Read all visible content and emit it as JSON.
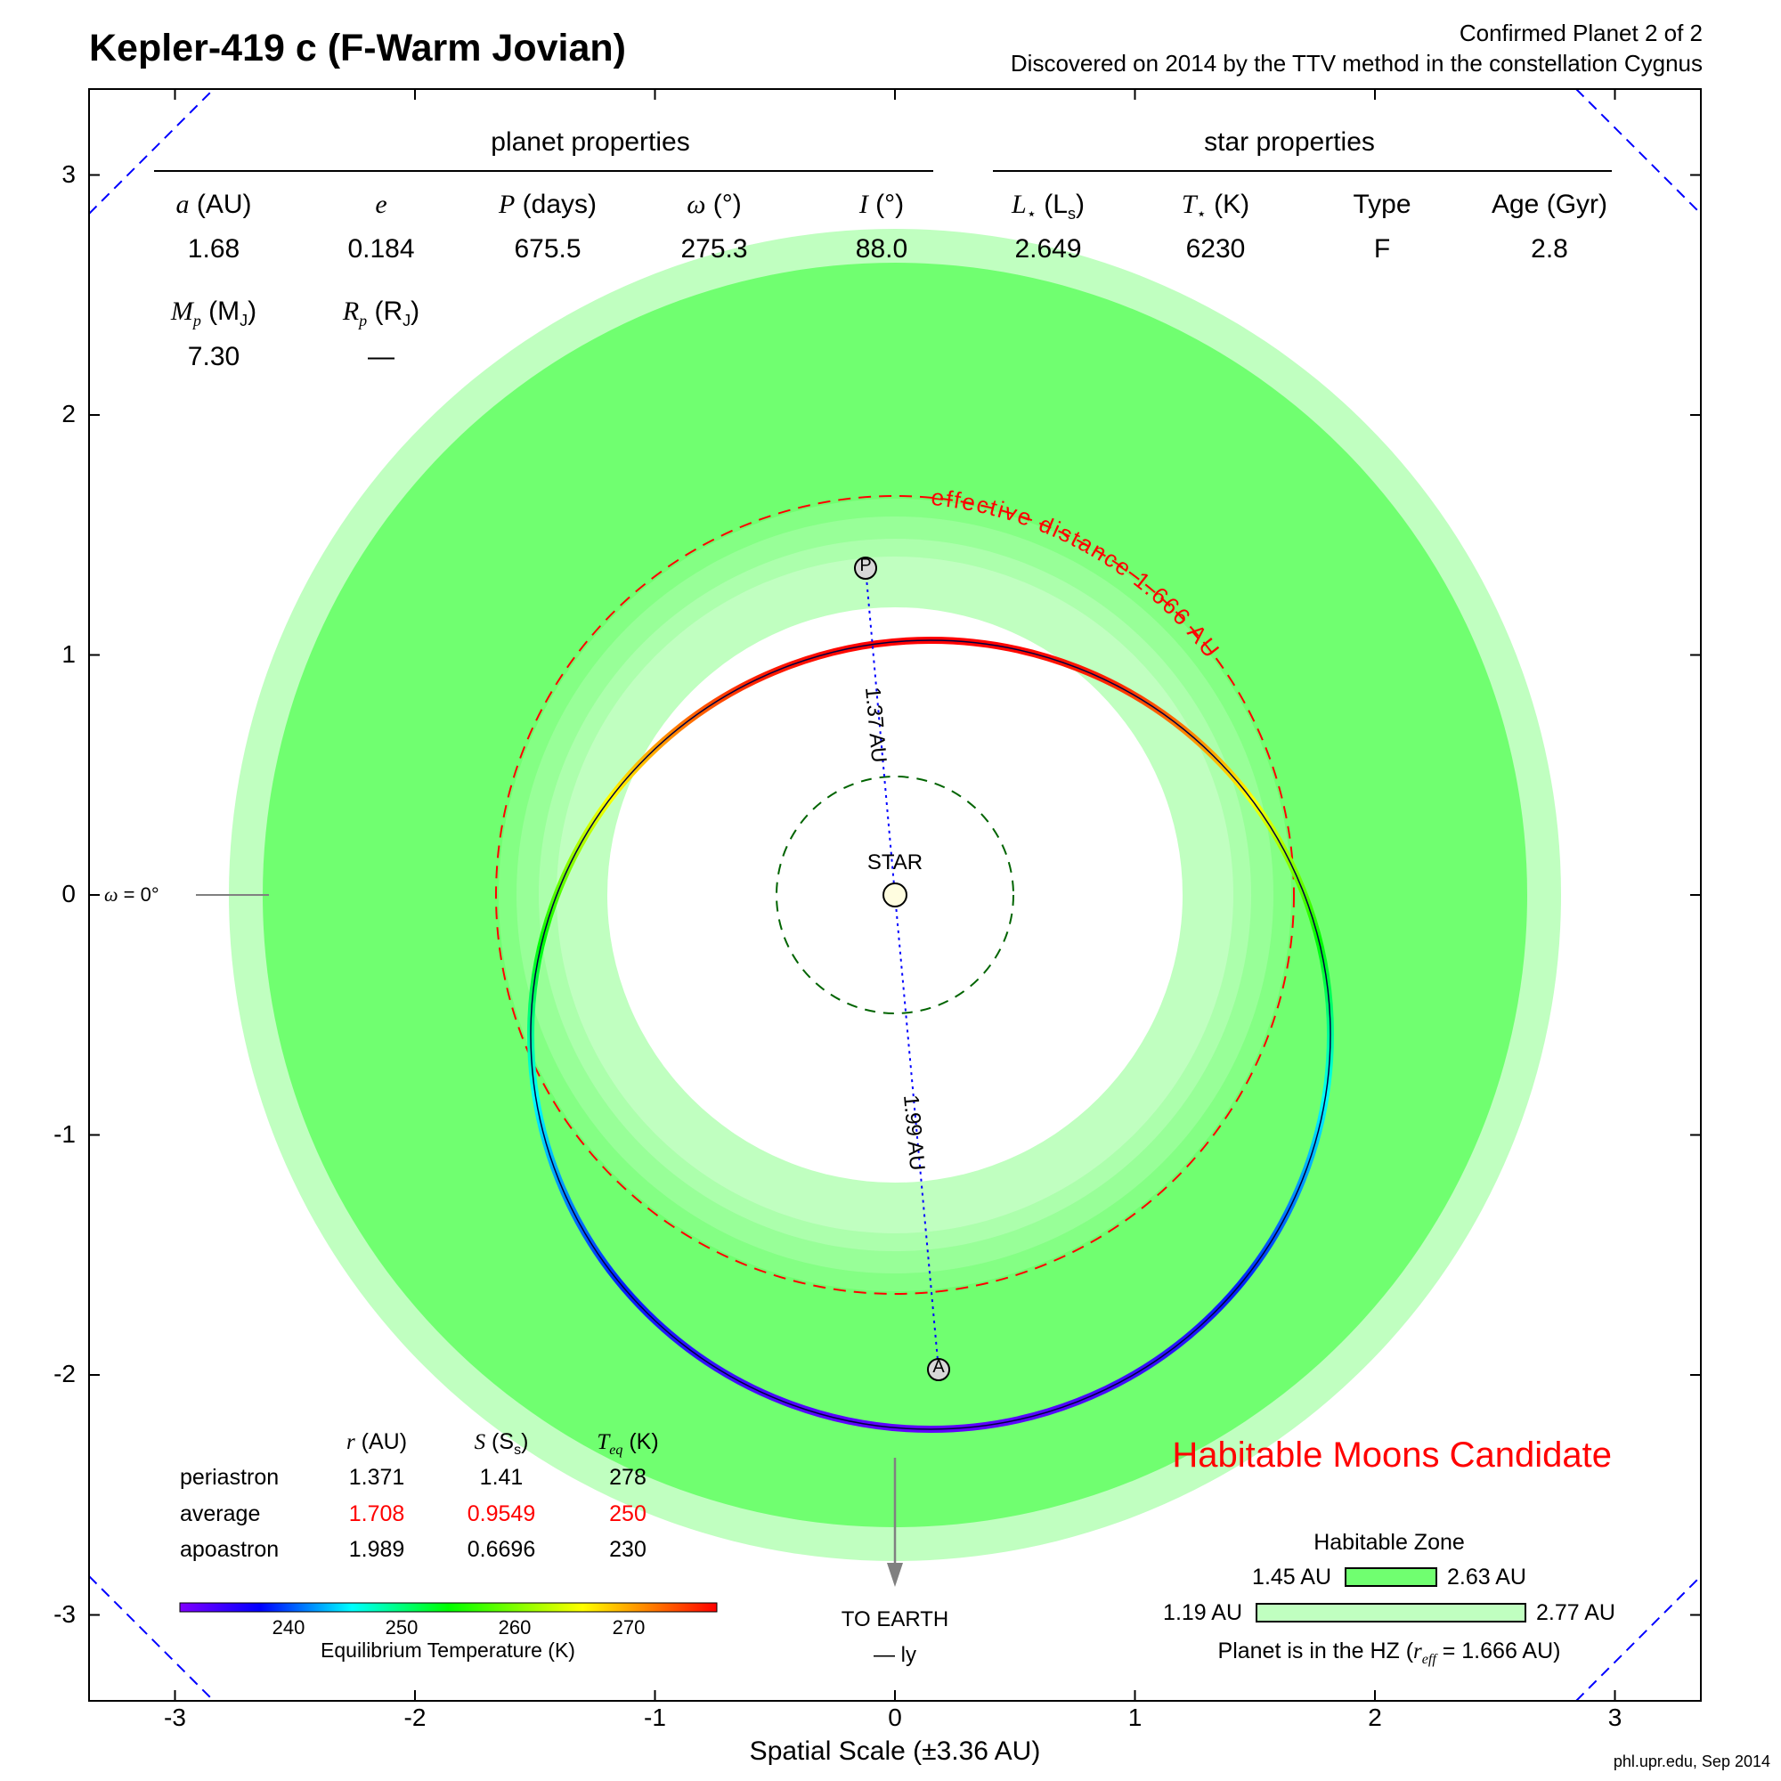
{
  "title": "Kepler-419 c (F-Warm Jovian)",
  "subtitle_line1": "Confirmed Planet 2 of 2",
  "subtitle_line2": "Discovered on 2014 by the TTV method in the constellation Cygnus",
  "planet_properties": {
    "heading": "planet properties",
    "a_sym": "a",
    "a_unit": " (AU)",
    "a_val": "1.68",
    "e_sym": "e",
    "e_val": "0.184",
    "P_sym": "P",
    "P_unit": " (days)",
    "P_val": "675.5",
    "w_sym": "ω",
    "w_unit": " (°)",
    "w_val": "275.3",
    "I_sym": "I",
    "I_unit": " (°)",
    "I_val": "88.0",
    "Mp_sym": "M",
    "Mp_sub": "p",
    "Mp_unit": " (M",
    "Mp_unit_sub": "J",
    "Mp_close": ")",
    "Mp_val": "7.30",
    "Rp_sym": "R",
    "Rp_sub": "p",
    "Rp_unit": " (R",
    "Rp_unit_sub": "J",
    "Rp_close": ")",
    "Rp_val": "—"
  },
  "star_properties": {
    "heading": "star properties",
    "L_sym": "L",
    "L_star": "⋆",
    "L_unit": " (L",
    "L_unit_sub": "s",
    "L_close": ")",
    "L_val": "2.649",
    "T_sym": "T",
    "T_star": "⋆",
    "T_unit": " (K)",
    "T_val": "6230",
    "type_label": "Type",
    "type_val": "F",
    "age_label": "Age (Gyr)",
    "age_val": "2.8"
  },
  "orbit_labels": {
    "star": "STAR",
    "periastron_marker": "P",
    "apoastron_marker": "A",
    "peri_dist": "1.37 AU",
    "apo_dist": "1.99 AU",
    "effective_distance": "effective distance 1.666 AU",
    "omega_zero_sym": "ω",
    "omega_zero_rest": " = 0°",
    "to_earth": "TO EARTH",
    "ly": "— ly"
  },
  "stats_table": {
    "col_r": "r",
    "col_r_unit": " (AU)",
    "col_S": "S",
    "col_S_unit": " (S",
    "col_S_sub": "s",
    "col_S_close": ")",
    "col_T": "T",
    "col_T_sub": "eq",
    "col_T_unit": " (K)",
    "rows": [
      {
        "label": "periastron",
        "r": "1.371",
        "S": "1.41",
        "T": "278"
      },
      {
        "label": "average",
        "r": "1.708",
        "S": "0.9549",
        "T": "250"
      },
      {
        "label": "apoastron",
        "r": "1.989",
        "S": "0.6696",
        "T": "230"
      }
    ]
  },
  "colorbar": {
    "ticks": [
      "240",
      "250",
      "260",
      "270"
    ],
    "label": "Equilibrium Temperature (K)"
  },
  "habitable_moons": "Habitable Moons Candidate",
  "hz_legend": {
    "title": "Habitable Zone",
    "inner_min": "1.45 AU",
    "inner_max": "2.63 AU",
    "outer_min": "1.19 AU",
    "outer_max": "2.77 AU",
    "status_pre": "Planet is in the HZ (",
    "status_sym": "r",
    "status_sub": "eff",
    "status_post": " = 1.666 AU)"
  },
  "axes": {
    "x_ticks": [
      "-3",
      "-2",
      "-1",
      "0",
      "1",
      "2",
      "3"
    ],
    "y_ticks": [
      "3",
      "2",
      "1",
      "0",
      "-1",
      "-2",
      "-3"
    ],
    "xlabel": "Spatial Scale (±3.36 AU)"
  },
  "credit": "phl.upr.edu, Sep 2014",
  "chart_data": {
    "type": "orbit-diagram",
    "xlim": [
      -3.36,
      3.36
    ],
    "ylim": [
      -3.36,
      3.36
    ],
    "semi_major_axis_au": 1.68,
    "eccentricity": 0.184,
    "argument_of_periastron_deg": 275.3,
    "periastron_au": 1.371,
    "apoastron_au": 1.989,
    "effective_distance_au": 1.666,
    "habitable_zone_conservative_au": [
      1.45,
      2.63
    ],
    "habitable_zone_optimistic_au": [
      1.19,
      2.77
    ],
    "temperature_range_k": [
      230,
      278
    ],
    "colors": {
      "hz_conservative": "#70ff70",
      "hz_optimistic": "#c0ffc0",
      "effective_circle": "#ff0000",
      "star_circle": "#006400",
      "distance_line": "#0000ff",
      "corner_dash": "#0000ff"
    }
  }
}
